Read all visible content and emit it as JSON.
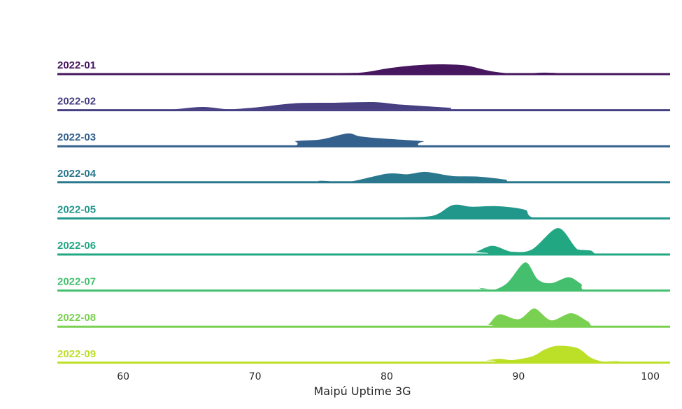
{
  "chart_data": {
    "type": "ridgeline",
    "xlabel": "Maipú Uptime 3G",
    "xlim": [
      55,
      101.5
    ],
    "xticks": [
      60,
      70,
      80,
      90,
      100
    ],
    "xtick_labels": [
      "60",
      "70",
      "80",
      "90",
      "100"
    ],
    "grid": false,
    "series": [
      {
        "name": "2022-01",
        "color": "#46165f",
        "x": [
          55,
          71,
          75,
          78,
          80,
          82,
          84,
          86,
          88,
          90,
          92,
          94,
          96,
          101.5
        ],
        "density": [
          0,
          0,
          0.15,
          0.2,
          0.55,
          0.8,
          0.9,
          0.8,
          0.3,
          0.1,
          0.2,
          0.1,
          0,
          0
        ]
      },
      {
        "name": "2022-02",
        "color": "#463f82",
        "x": [
          55,
          59,
          63,
          66,
          68,
          70,
          73,
          76,
          79,
          81,
          83,
          85,
          86.5,
          101.5
        ],
        "density": [
          0,
          0.02,
          0.08,
          0.35,
          0.15,
          0.3,
          0.65,
          0.7,
          0.75,
          0.55,
          0.4,
          0.25,
          0,
          0
        ]
      },
      {
        "name": "2022-03",
        "color": "#34608d",
        "x": [
          55,
          71.5,
          73,
          75,
          77,
          78,
          80,
          81.5,
          83,
          84,
          101.5
        ],
        "density": [
          0,
          0,
          0.5,
          0.65,
          1.15,
          0.9,
          0.7,
          0.6,
          0.45,
          0,
          0
        ]
      },
      {
        "name": "2022-04",
        "color": "#2a788e",
        "x": [
          55,
          72.5,
          75,
          77,
          80,
          81.5,
          83,
          85,
          87,
          89,
          90.5,
          101.5
        ],
        "density": [
          0,
          0,
          0.2,
          0.1,
          0.8,
          0.75,
          0.95,
          0.6,
          0.55,
          0.3,
          0,
          0
        ]
      },
      {
        "name": "2022-05",
        "color": "#21968b",
        "x": [
          55,
          75,
          77,
          79,
          81,
          83.5,
          85,
          86.5,
          88.5,
          90.5,
          92,
          101.5
        ],
        "density": [
          0,
          0,
          0.15,
          0.05,
          0.15,
          0.3,
          1.2,
          1.05,
          1.1,
          0.8,
          0,
          0
        ]
      },
      {
        "name": "2022-06",
        "color": "#22a783",
        "x": [
          55,
          85,
          86.5,
          88,
          89.5,
          91,
          93,
          94.5,
          95.5,
          96.5,
          101.5
        ],
        "density": [
          0,
          0,
          0.2,
          0.8,
          0.3,
          0.5,
          2.3,
          0.5,
          0.4,
          0,
          0
        ]
      },
      {
        "name": "2022-07",
        "color": "#43bf6d",
        "x": [
          55,
          85.5,
          86.5,
          87.5,
          89,
          90.5,
          91.5,
          92.5,
          93.8,
          94.8,
          95.5,
          101.5
        ],
        "density": [
          0,
          0,
          0.35,
          0,
          0.6,
          2.45,
          1.0,
          0.7,
          1.2,
          0.6,
          0,
          0
        ]
      },
      {
        "name": "2022-08",
        "color": "#7ad151",
        "x": [
          55,
          85.5,
          86.5,
          87.5,
          88.5,
          90,
          91.2,
          92.5,
          94,
          95.3,
          96.2,
          101.5
        ],
        "density": [
          0,
          0,
          0.12,
          0.08,
          1.1,
          0.7,
          1.6,
          0.6,
          1.2,
          0.5,
          0,
          0
        ]
      },
      {
        "name": "2022-09",
        "color": "#bcdf27",
        "x": [
          55,
          85.5,
          87,
          88.5,
          89.5,
          91,
          92,
          93,
          94.5,
          95.5,
          96.5,
          97.5,
          98.5,
          101.5
        ],
        "density": [
          0,
          0,
          0.2,
          0.4,
          0.3,
          0.6,
          1.2,
          1.5,
          1.3,
          0.5,
          0.15,
          0.2,
          0,
          0
        ]
      }
    ]
  }
}
